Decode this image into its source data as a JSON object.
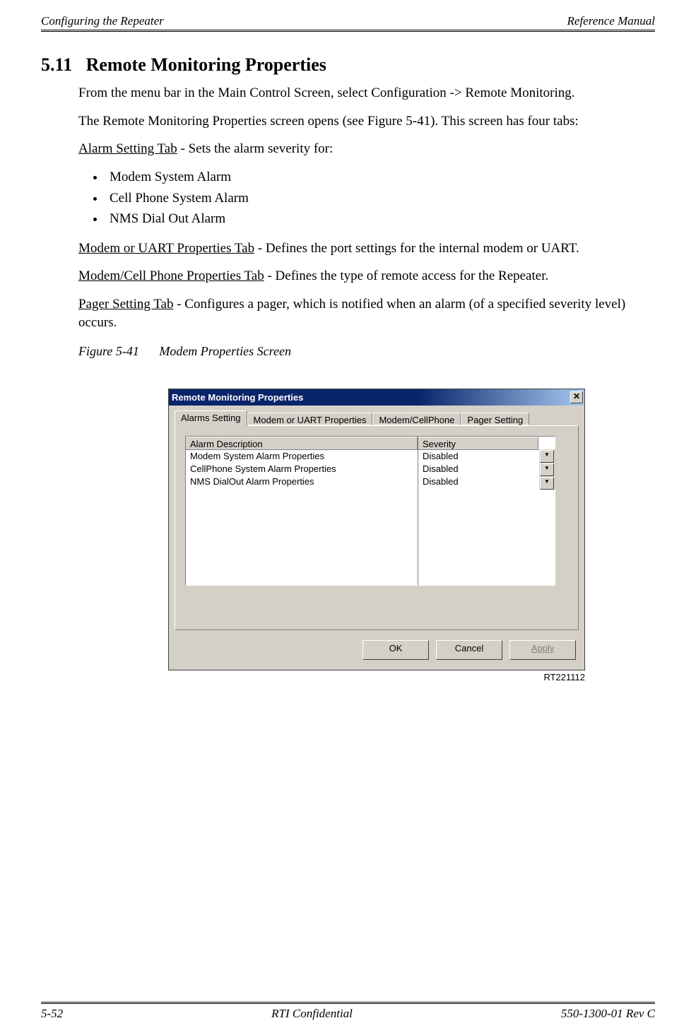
{
  "header": {
    "left": "Configuring the Repeater",
    "right": "Reference Manual"
  },
  "section": {
    "number": "5.11",
    "title": "Remote Monitoring Properties"
  },
  "paragraphs": {
    "p1": "From the menu bar in the Main Control Screen, select Configuration -> Remote Monitoring.",
    "p2": "The Remote Monitoring Properties screen opens (see Figure 5-41). This screen has four tabs:",
    "alarm_tab_name": "Alarm Setting Tab",
    "alarm_desc": " - Sets the alarm severity for:",
    "bullets": {
      "b1": "Modem System Alarm",
      "b2": "Cell Phone System Alarm",
      "b3": "NMS Dial Out Alarm"
    },
    "modem_tab_name": "Modem or UART Properties Tab",
    "modem_desc": " - Defines the port settings for the internal modem or UART.",
    "cell_tab_name": "Modem/Cell Phone Properties Tab",
    "cell_desc": " - Defines the type of remote access for the Repeater.",
    "pager_tab_name": "Pager Setting Tab",
    "pager_desc": " - Configures a pager, which is notified when an alarm (of a specified severity level) occurs."
  },
  "figure": {
    "label": "Figure 5-41",
    "caption": "Modem Properties Screen",
    "rt_label": "RT221112"
  },
  "dialog": {
    "title": "Remote Monitoring Properties",
    "close_glyph": "✕",
    "tabs": {
      "t0": "Alarms Setting",
      "t1": "Modem or UART Properties",
      "t2": "Modem/CellPhone",
      "t3": "Pager Setting"
    },
    "columns": {
      "desc": "Alarm Description",
      "sev": "Severity"
    },
    "rows": {
      "r0_desc": "Modem System Alarm Properties",
      "r0_sev": "Disabled",
      "r1_desc": "CellPhone System Alarm Properties",
      "r1_sev": "Disabled",
      "r2_desc": "NMS DialOut Alarm Properties",
      "r2_sev": "Disabled"
    },
    "buttons": {
      "ok": "OK",
      "cancel": "Cancel",
      "apply": "Apply"
    },
    "dropdown_glyph": "▼"
  },
  "footer": {
    "left": "5-52",
    "center": "RTI Confidential",
    "right": "550-1300-01 Rev C"
  },
  "colors": {
    "dialog_bg": "#d4d0c8",
    "titlebar_start": "#0a246a",
    "titlebar_end": "#a6caf0"
  }
}
